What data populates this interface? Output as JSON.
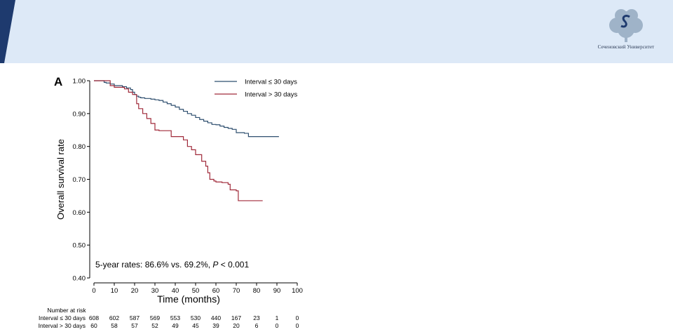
{
  "header": {
    "logo_caption": "Сеченовский Университет",
    "logo_icon": "university-tree-s-icon"
  },
  "chart_data": {
    "type": "line",
    "panel_label": "A",
    "title": "",
    "xlabel": "Time (months)",
    "ylabel": "Overall survival rate",
    "xlim": [
      0,
      100
    ],
    "ylim": [
      0.4,
      1.0
    ],
    "xticks": [
      0,
      10,
      20,
      30,
      40,
      50,
      60,
      70,
      80,
      90,
      100
    ],
    "yticks": [
      "0.40",
      "0.50",
      "0.60",
      "0.70",
      "0.80",
      "0.90",
      "1.00"
    ],
    "grid": false,
    "legend_position": "top-right",
    "annotation": {
      "prefix": "5-year rates: 86.6% vs. 69.2%, ",
      "p_symbol": "P",
      "suffix": " < 0.001"
    },
    "series": [
      {
        "name": "Interval ≤ 30 days",
        "color": "#2f4f6f",
        "x": [
          0,
          4,
          5,
          6,
          8,
          10,
          14,
          16,
          18,
          19,
          20,
          21,
          22,
          23,
          25,
          28,
          30,
          32,
          34,
          36,
          38,
          40,
          42,
          44,
          46,
          48,
          50,
          52,
          54,
          56,
          58,
          60,
          62,
          64,
          66,
          68,
          70,
          72,
          74,
          76,
          80,
          85,
          91
        ],
        "y": [
          1.0,
          1.0,
          0.995,
          0.993,
          0.99,
          0.985,
          0.982,
          0.978,
          0.973,
          0.965,
          0.958,
          0.953,
          0.95,
          0.948,
          0.946,
          0.944,
          0.942,
          0.94,
          0.935,
          0.93,
          0.925,
          0.92,
          0.913,
          0.907,
          0.9,
          0.895,
          0.888,
          0.882,
          0.877,
          0.872,
          0.867,
          0.866,
          0.862,
          0.858,
          0.855,
          0.852,
          0.842,
          0.842,
          0.84,
          0.83,
          0.83,
          0.83,
          0.83
        ]
      },
      {
        "name": "Interval > 30 days",
        "color": "#a02a3a",
        "x": [
          0,
          5,
          8,
          10,
          15,
          17,
          19,
          21,
          22,
          24,
          26,
          28,
          30,
          32,
          38,
          44,
          46,
          48,
          50,
          53,
          55,
          56,
          57,
          59,
          60,
          63,
          66,
          67,
          70,
          71,
          75,
          83
        ],
        "y": [
          1.0,
          1.0,
          0.985,
          0.98,
          0.975,
          0.965,
          0.958,
          0.93,
          0.915,
          0.9,
          0.885,
          0.87,
          0.85,
          0.848,
          0.83,
          0.82,
          0.8,
          0.79,
          0.775,
          0.755,
          0.74,
          0.72,
          0.7,
          0.695,
          0.692,
          0.69,
          0.685,
          0.668,
          0.665,
          0.635,
          0.635,
          0.635
        ]
      }
    ],
    "risk_table": {
      "title": "Number at risk",
      "times": [
        0,
        10,
        20,
        30,
        40,
        50,
        60,
        70,
        80,
        90,
        100
      ],
      "rows": [
        {
          "label": "Interval ≤ 30 days",
          "values": [
            "608",
            "602",
            "587",
            "569",
            "553",
            "530",
            "440",
            "167",
            "23",
            "1",
            "0"
          ]
        },
        {
          "label": "Interval > 30 days",
          "values": [
            "60",
            "58",
            "57",
            "52",
            "49",
            "45",
            "39",
            "20",
            "6",
            "0",
            "0"
          ]
        }
      ]
    }
  }
}
